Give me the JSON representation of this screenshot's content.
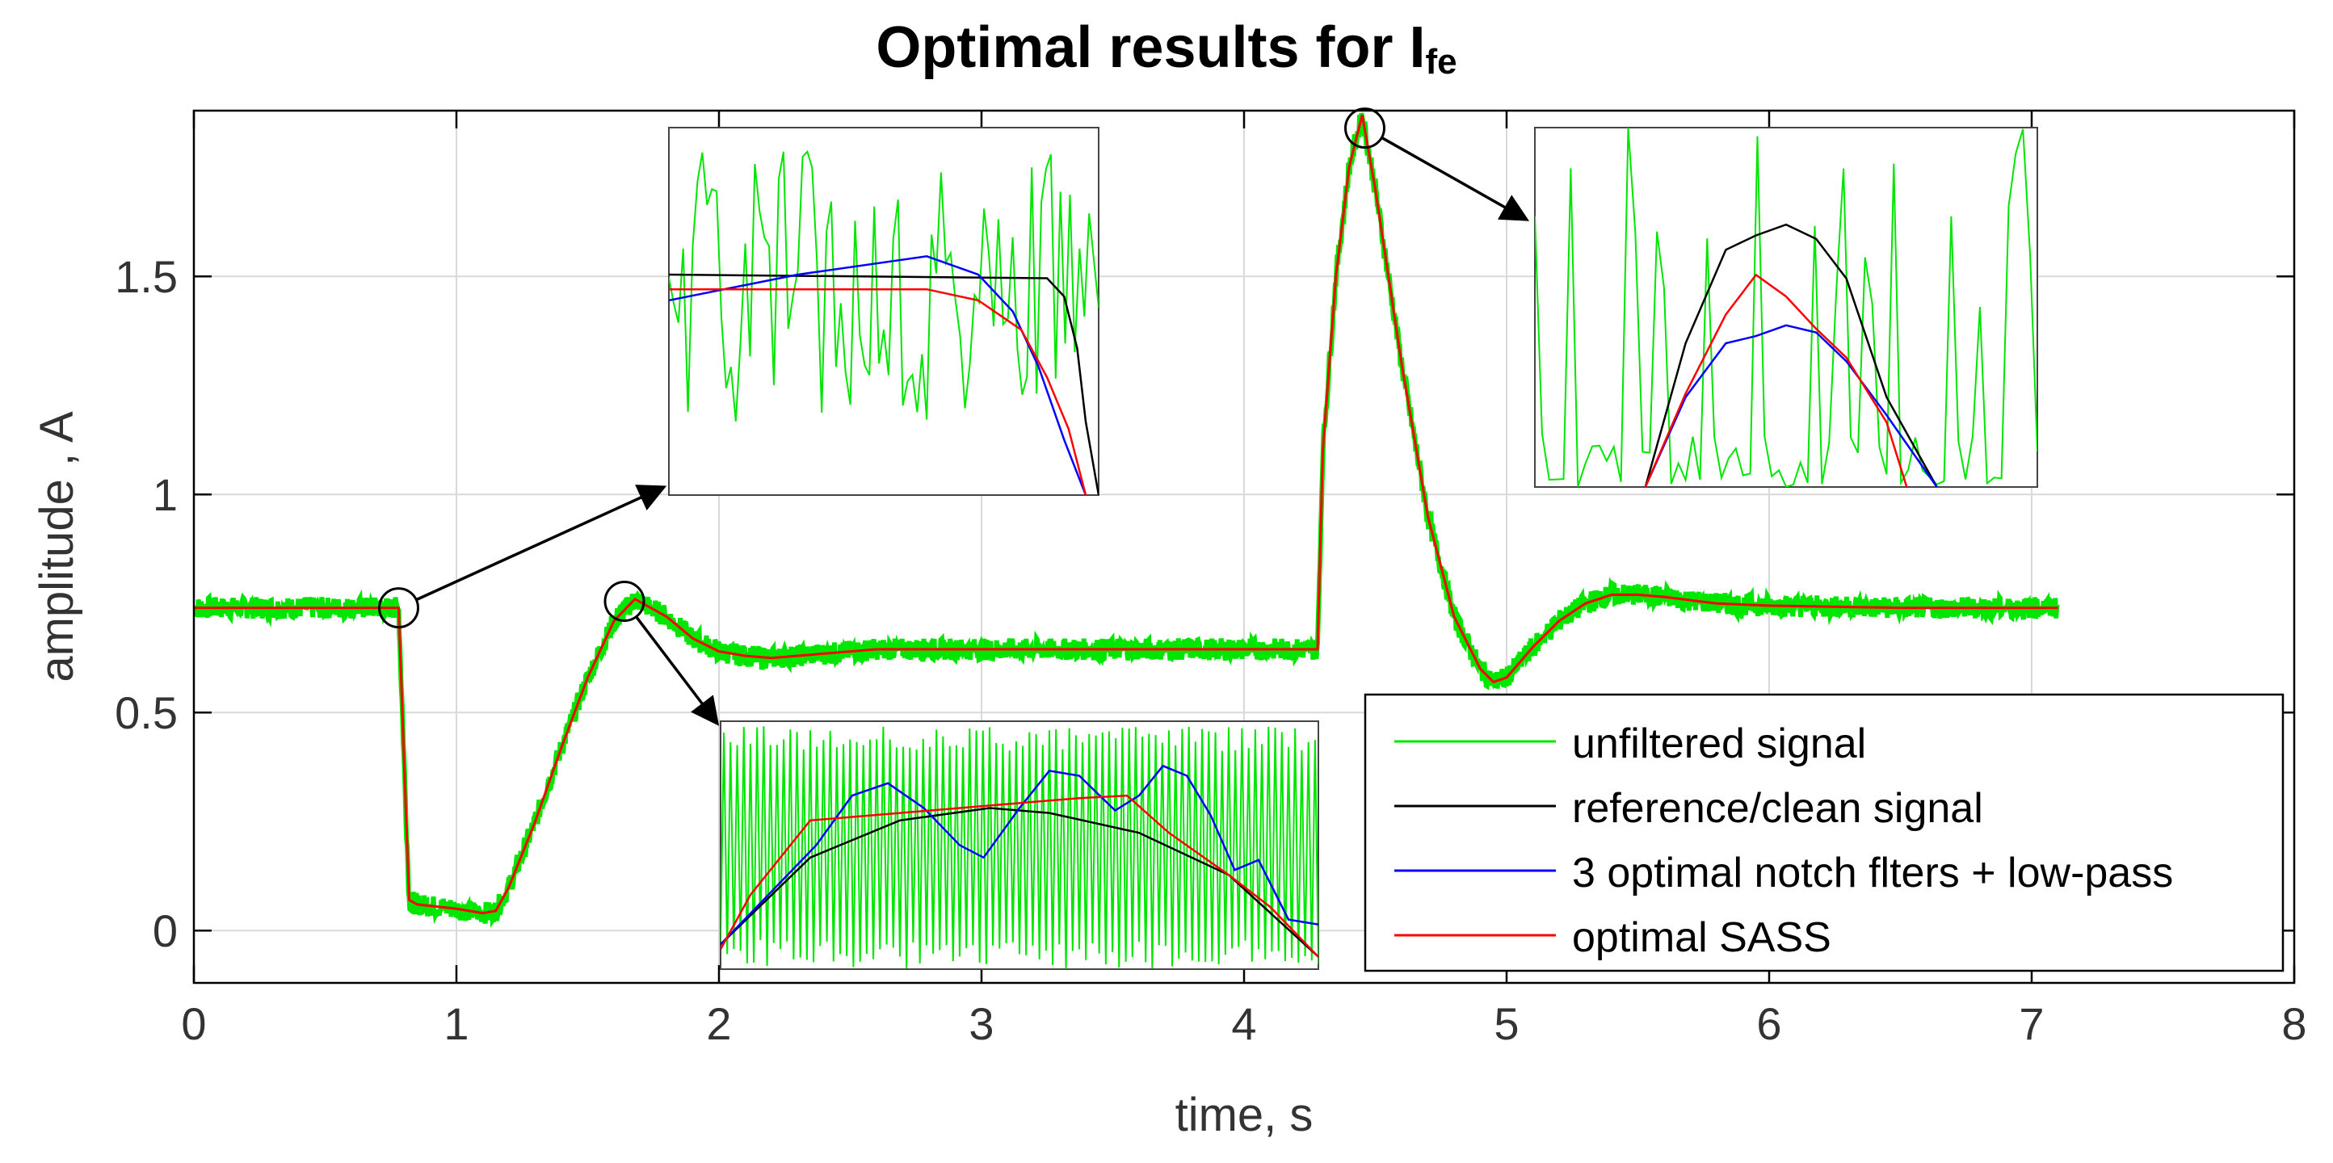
{
  "chart_data": {
    "type": "line",
    "title": "Optimal results for I",
    "title_subscript": "fe",
    "xlabel": "time, s",
    "ylabel": "amplitude , A",
    "xlim": [
      0,
      8
    ],
    "ylim": [
      -0.12,
      1.88
    ],
    "xticks": [
      0,
      1,
      2,
      3,
      4,
      5,
      6,
      7,
      8
    ],
    "yticks": [
      0,
      0.5,
      1,
      1.5
    ],
    "xtick_labels": [
      "0",
      "1",
      "2",
      "3",
      "4",
      "5",
      "6",
      "7",
      "8"
    ],
    "ytick_labels": [
      "0",
      "0.5",
      "1",
      "1.5"
    ],
    "grid": true,
    "legend_position": "bottom-right",
    "series": [
      {
        "name": "unfiltered signal",
        "color": "#00e600"
      },
      {
        "name": "reference/clean signal",
        "color": "#000000"
      },
      {
        "name": "3 optimal notch flters + low-pass",
        "color": "#0000ff"
      },
      {
        "name": "optimal SASS",
        "color": "#ff0000"
      }
    ],
    "main_curve": {
      "x": [
        0,
        0.7,
        0.78,
        0.8,
        0.82,
        0.85,
        1.0,
        1.1,
        1.15,
        1.2,
        1.3,
        1.4,
        1.5,
        1.6,
        1.68,
        1.8,
        1.9,
        2.0,
        2.1,
        2.2,
        2.4,
        2.6,
        3.0,
        3.5,
        4.0,
        4.28,
        4.3,
        4.35,
        4.4,
        4.45,
        4.5,
        4.6,
        4.7,
        4.8,
        4.9,
        4.95,
        5.0,
        5.1,
        5.2,
        5.3,
        5.4,
        5.5,
        5.6,
        5.8,
        6.0,
        6.5,
        7.1
      ],
      "y": [
        0.74,
        0.74,
        0.74,
        0.4,
        0.07,
        0.06,
        0.05,
        0.04,
        0.045,
        0.1,
        0.25,
        0.42,
        0.58,
        0.71,
        0.76,
        0.72,
        0.67,
        0.64,
        0.63,
        0.625,
        0.635,
        0.645,
        0.645,
        0.645,
        0.645,
        0.645,
        1.1,
        1.5,
        1.75,
        1.87,
        1.7,
        1.3,
        0.95,
        0.72,
        0.6,
        0.57,
        0.58,
        0.65,
        0.71,
        0.75,
        0.77,
        0.77,
        0.765,
        0.75,
        0.745,
        0.74,
        0.74
      ]
    },
    "callout_points": [
      {
        "x": 0.78,
        "y": 0.74
      },
      {
        "x": 1.64,
        "y": 0.755
      },
      {
        "x": 4.46,
        "y": 1.84
      }
    ],
    "insets": [
      {
        "id": "inset-step",
        "clean": {
          "x": [
            0,
            0.88,
            0.92,
            0.95,
            0.97,
            1.0
          ],
          "y": [
            0.4,
            0.41,
            0.46,
            0.6,
            0.8,
            1.0
          ]
        },
        "notch": {
          "x": [
            0,
            0.3,
            0.6,
            0.72,
            0.8,
            0.86,
            0.92,
            0.97
          ],
          "y": [
            0.47,
            0.4,
            0.35,
            0.4,
            0.5,
            0.65,
            0.85,
            1.0
          ]
        },
        "sass": {
          "x": [
            0,
            0.3,
            0.6,
            0.72,
            0.82,
            0.88,
            0.93,
            0.97
          ],
          "y": [
            0.44,
            0.44,
            0.44,
            0.47,
            0.55,
            0.68,
            0.82,
            1.0
          ]
        }
      },
      {
        "id": "inset-overshoot",
        "clean": {
          "x": [
            0,
            0.15,
            0.3,
            0.45,
            0.55,
            0.7,
            0.85,
            1.0
          ],
          "y": [
            0.9,
            0.55,
            0.4,
            0.35,
            0.37,
            0.45,
            0.62,
            0.95
          ]
        },
        "notch": {
          "x": [
            0,
            0.08,
            0.16,
            0.22,
            0.28,
            0.34,
            0.4,
            0.44,
            0.5,
            0.55,
            0.6,
            0.66,
            0.7,
            0.74,
            0.78,
            0.82,
            0.86,
            0.9,
            0.95,
            1.0
          ],
          "y": [
            0.9,
            0.7,
            0.5,
            0.3,
            0.25,
            0.35,
            0.5,
            0.55,
            0.35,
            0.2,
            0.22,
            0.36,
            0.3,
            0.18,
            0.22,
            0.38,
            0.6,
            0.56,
            0.8,
            0.82
          ]
        },
        "sass": {
          "x": [
            0,
            0.05,
            0.15,
            0.3,
            0.45,
            0.6,
            0.68,
            0.75,
            0.85,
            0.92,
            1.0
          ],
          "y": [
            0.92,
            0.7,
            0.4,
            0.37,
            0.34,
            0.31,
            0.3,
            0.45,
            0.62,
            0.75,
            0.95
          ]
        }
      },
      {
        "id": "inset-peak",
        "clean": {
          "x": [
            0.22,
            0.3,
            0.38,
            0.44,
            0.5,
            0.56,
            0.62,
            0.7,
            0.8
          ],
          "y": [
            1.0,
            0.6,
            0.34,
            0.3,
            0.27,
            0.31,
            0.42,
            0.75,
            1.0
          ]
        },
        "notch": {
          "x": [
            0.22,
            0.3,
            0.38,
            0.44,
            0.5,
            0.56,
            0.62,
            0.7,
            0.8
          ],
          "y": [
            1.0,
            0.75,
            0.6,
            0.58,
            0.55,
            0.57,
            0.65,
            0.8,
            1.0
          ]
        },
        "sass": {
          "x": [
            0.22,
            0.3,
            0.38,
            0.44,
            0.5,
            0.56,
            0.62,
            0.7,
            0.74
          ],
          "y": [
            1.0,
            0.74,
            0.52,
            0.41,
            0.47,
            0.56,
            0.64,
            0.82,
            1.0
          ]
        }
      }
    ]
  },
  "colors": {
    "grid": "#d9d9d9",
    "axis": "#000000",
    "unfiltered": "#00e600",
    "clean": "#000000",
    "notch": "#0000ff",
    "sass": "#ff0000"
  }
}
